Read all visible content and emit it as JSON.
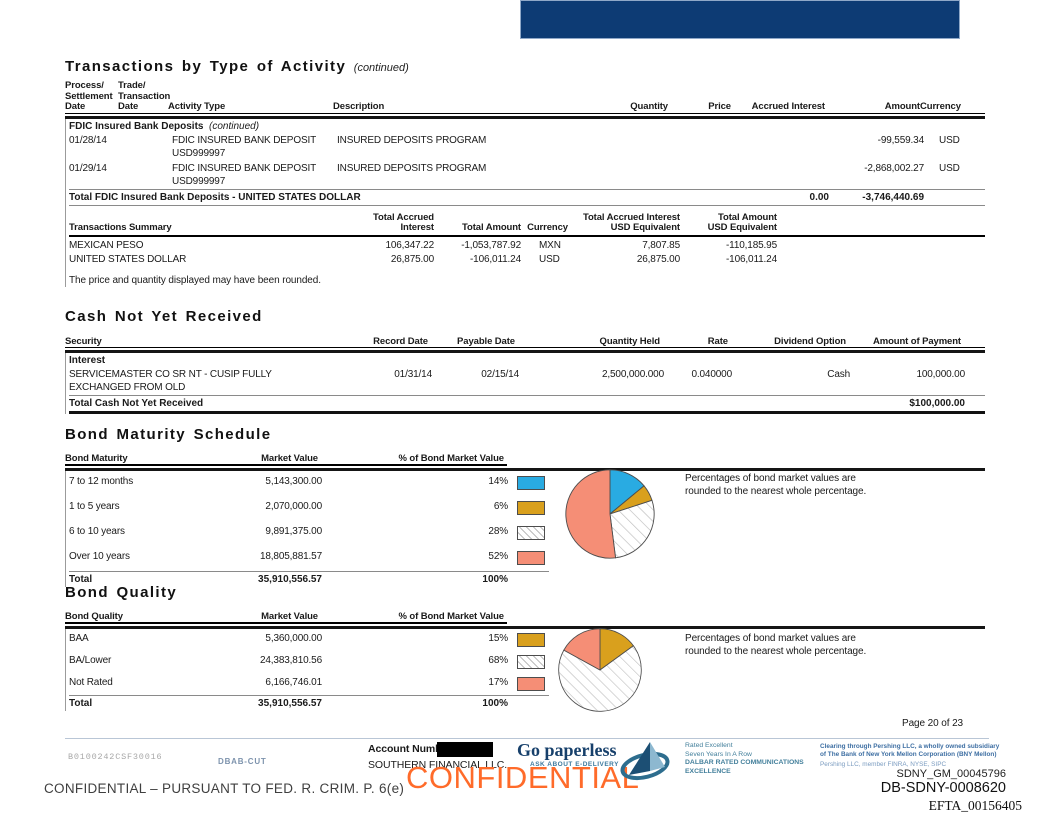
{
  "transactions": {
    "title": "Transactions by Type of Activity",
    "continued": "(continued)",
    "col_process_1": "Process/",
    "col_process_2": "Settlement",
    "col_process_3": "Date",
    "col_trade_1": "Trade/",
    "col_trade_2": "Transaction",
    "col_trade_3": "Date",
    "col_activity": "Activity Type",
    "col_description": "Description",
    "col_quantity": "Quantity",
    "col_price": "Price",
    "col_accrued": "Accrued Interest",
    "col_amount": "Amount",
    "col_currency": "Currency",
    "group": "FDIC Insured Bank Deposits",
    "group_continued": "(continued)",
    "rows": [
      {
        "date": "01/28/14",
        "activity1": "FDIC INSURED BANK DEPOSIT",
        "activity2": "USD999997",
        "description": "INSURED DEPOSITS PROGRAM",
        "amount": "-99,559.34",
        "currency": "USD"
      },
      {
        "date": "01/29/14",
        "activity1": "FDIC INSURED BANK DEPOSIT",
        "activity2": "USD999997",
        "description": "INSURED DEPOSITS PROGRAM",
        "amount": "-2,868,002.27",
        "currency": "USD"
      }
    ],
    "total": {
      "label": "Total FDIC Insured Bank Deposits - UNITED STATES DOLLAR",
      "accrued": "0.00",
      "amount": "-3,746,440.69"
    }
  },
  "summary": {
    "col_label": "Transactions Summary",
    "col_tai": "Total Accrued Interest",
    "col_ta": "Total Amount",
    "col_currency": "Currency",
    "col_tai_usd_1": "Total Accrued Interest",
    "col_tai_usd_2": "USD Equivalent",
    "col_ta_usd_1": "Total Amount",
    "col_ta_usd_2": "USD Equivalent",
    "rows": [
      {
        "label": "MEXICAN PESO",
        "tai": "106,347.22",
        "ta": "-1,053,787.92",
        "currency": "MXN",
        "tai_usd": "7,807.85",
        "ta_usd": "-110,185.95"
      },
      {
        "label": "UNITED STATES DOLLAR",
        "tai": "26,875.00",
        "ta": "-106,011.24",
        "currency": "USD",
        "tai_usd": "26,875.00",
        "ta_usd": "-106,011.24"
      }
    ],
    "note": "The price and quantity displayed may have been rounded."
  },
  "cash": {
    "title": "Cash Not Yet Received",
    "col_security": "Security",
    "col_record": "Record Date",
    "col_payable": "Payable Date",
    "col_quantity": "Quantity Held",
    "col_rate": "Rate",
    "col_dividend": "Dividend Option",
    "col_amount": "Amount of Payment",
    "group": "Interest",
    "rows": [
      {
        "security1": "SERVICEMASTER CO SR NT - CUSIP FULLY",
        "security2": "EXCHANGED FROM OLD",
        "record": "01/31/14",
        "payable": "02/15/14",
        "quantity": "2,500,000.000",
        "rate": "0.040000",
        "dividend": "Cash",
        "amount": "100,000.00"
      }
    ],
    "total": {
      "label": "Total Cash Not Yet Received",
      "amount": "$100,000.00"
    }
  },
  "bond_maturity": {
    "title": "Bond Maturity Schedule",
    "col_label": "Bond Maturity",
    "col_value": "Market Value",
    "col_pct": "% of Bond Market Value",
    "rows": [
      {
        "label": "7 to 12 months",
        "value": "5,143,300.00",
        "pct": "14%"
      },
      {
        "label": "1 to 5 years",
        "value": "2,070,000.00",
        "pct": "6%"
      },
      {
        "label": "6 to 10 years",
        "value": "9,891,375.00",
        "pct": "28%"
      },
      {
        "label": "Over 10 years",
        "value": "18,805,881.57",
        "pct": "52%"
      }
    ],
    "total": {
      "label": "Total",
      "value": "35,910,556.57",
      "pct": "100%"
    },
    "note1": "Percentages of bond market values are",
    "note2": "rounded to the nearest whole percentage."
  },
  "bond_quality": {
    "title": "Bond Quality",
    "col_label": "Bond Quality",
    "col_value": "Market Value",
    "col_pct": "% of Bond Market Value",
    "rows": [
      {
        "label": "BAA",
        "value": "5,360,000.00",
        "pct": "15%"
      },
      {
        "label": "BA/Lower",
        "value": "24,383,810.56",
        "pct": "68%"
      },
      {
        "label": "Not Rated",
        "value": "6,166,746.01",
        "pct": "17%"
      }
    ],
    "total": {
      "label": "Total",
      "value": "35,910,556.57",
      "pct": "100%"
    },
    "note1": "Percentages of bond market values are",
    "note2": "rounded to the nearest whole percentage."
  },
  "chart_data": [
    {
      "type": "pie",
      "title": "Bond Maturity Schedule",
      "labels": [
        "7 to 12 months",
        "1 to 5 years",
        "6 to 10 years",
        "Over 10 years"
      ],
      "values": [
        14,
        6,
        28,
        52
      ],
      "market_values": [
        5143300.0,
        2070000.0,
        9891375.0,
        18805881.57
      ],
      "total_market_value": 35910556.57,
      "colors": [
        "#29ABE2",
        "#D9A01D",
        "hatch",
        "#F58E76"
      ],
      "legend_position": "table-swatches-right"
    },
    {
      "type": "pie",
      "title": "Bond Quality",
      "labels": [
        "BAA",
        "BA/Lower",
        "Not Rated"
      ],
      "values": [
        15,
        68,
        17
      ],
      "market_values": [
        5360000.0,
        24383810.56,
        6166746.01
      ],
      "total_market_value": 35910556.57,
      "colors": [
        "#D9A01D",
        "hatch",
        "#F58E76"
      ],
      "legend_position": "table-swatches-right"
    }
  ],
  "footer": {
    "page": "Page 20 of 23",
    "doc_code": "B0100242CSF30016",
    "batch_code": "DBAB-CUT",
    "account_label": "Account Number:",
    "account_name": "SOUTHERN FINANCIAL LLC.",
    "watermark": "CONFIDENTIAL",
    "paperless_title": "Go paperless",
    "paperless_sub": "ASK ABOUT E-DELIVERY",
    "dalbar1": "Rated Excellent",
    "dalbar2": "Seven Years In A Row",
    "dalbar3": "DALBAR RATED COMMUNICATIONS",
    "dalbar4": "EXCELLENCE",
    "pershing1": "Clearing through Pershing LLC, a wholly owned subsidiary",
    "pershing2": "of The Bank of New York Mellon Corporation (BNY Mellon)",
    "pershing3": "Pershing LLC, member FINRA, NYSE, SIPC",
    "stamp1": "SDNY_GM_00045796",
    "stamp2": "DB-SDNY-0008620",
    "stamp3": "EFTA_00156405",
    "confidential_line": "CONFIDENTIAL – PURSUANT TO FED. R. CRIM. P. 6(e)"
  }
}
